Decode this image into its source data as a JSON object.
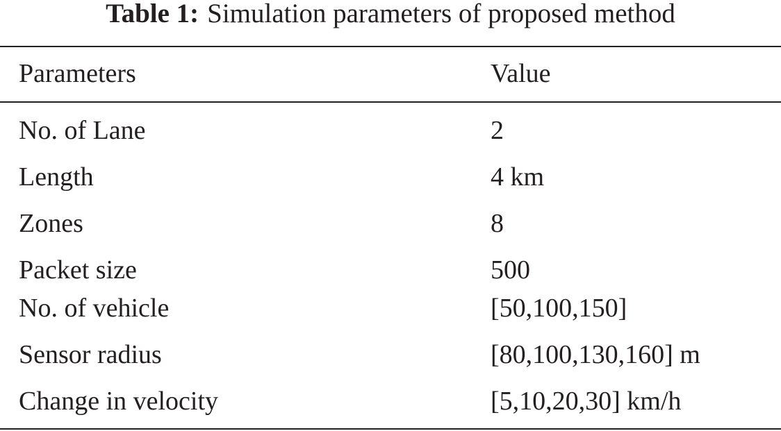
{
  "caption": {
    "label": "Table 1:",
    "text": "Simulation parameters of proposed method"
  },
  "table": {
    "header": [
      "Parameters",
      "Value"
    ],
    "rows": [
      [
        "No. of Lane",
        "2"
      ],
      [
        "Length",
        "4 km"
      ],
      [
        "Zones",
        "8"
      ],
      [
        "Packet size",
        "500"
      ],
      [
        "No. of vehicle",
        "[50,100,150]"
      ],
      [
        "Sensor radius",
        "[80,100,130,160] m"
      ],
      [
        "Change in velocity",
        "[5,10,20,30] km/h"
      ]
    ]
  }
}
